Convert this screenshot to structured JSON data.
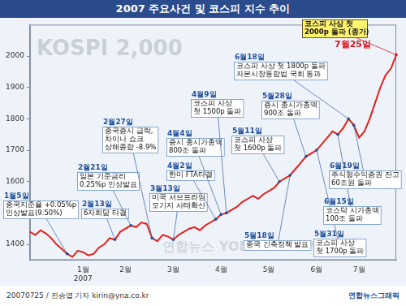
{
  "chart_data": {
    "type": "line",
    "title": "2007 주요사건 및 코스피 지수 추이",
    "subtitle": "KOSPI 2,000",
    "watermark": "연합뉴스 YONHAP NEWS",
    "footer": [
      "20070725 / 전승엽 기자 kirin@yna.co.kr",
      "연합뉴스그래픽"
    ],
    "categories": [
      null,
      null,
      null,
      null,
      null,
      null,
      null,
      null,
      null,
      null,
      "1월\n2007",
      null,
      null,
      null,
      null,
      null,
      null,
      null,
      "2월",
      null,
      null,
      null,
      null,
      null,
      null,
      null,
      null,
      "3월",
      null,
      null,
      null,
      null,
      null,
      null,
      null,
      null,
      "4월",
      null,
      null,
      null,
      null,
      null,
      null,
      null,
      null,
      "5월",
      null,
      null,
      null,
      null,
      null,
      null,
      null,
      null,
      "6월",
      null,
      null,
      null,
      null,
      null,
      null,
      null,
      "7월",
      null,
      null,
      null,
      null,
      null,
      null,
      null
    ],
    "values": [
      1440,
      1430,
      1445,
      1435,
      1420,
      1400,
      1385,
      1370,
      1360,
      1380,
      1375,
      1365,
      1370,
      1390,
      1400,
      1420,
      1415,
      1440,
      1450,
      1460,
      1455,
      1470,
      1465,
      1420,
      1410,
      1430,
      1425,
      1415,
      1430,
      1440,
      1450,
      1455,
      1445,
      1460,
      1470,
      1480,
      1495,
      1500,
      1510,
      1520,
      1535,
      1545,
      1555,
      1545,
      1560,
      1570,
      1580,
      1600,
      1610,
      1620,
      1640,
      1660,
      1680,
      1690,
      1700,
      1720,
      1740,
      1760,
      1750,
      1770,
      1800,
      1780,
      1740,
      1760,
      1800,
      1850,
      1900,
      1940,
      1960,
      2004
    ],
    "color": "#e3201b",
    "ylim": [
      1350,
      2100
    ],
    "yticks": [
      1400,
      1500,
      1600,
      1700,
      1800,
      1900,
      2000
    ],
    "grid": false,
    "annotations": [
      {
        "date": "1월5일",
        "text": [
          "중국지준율 +0.05%p",
          "인상발표(9.50%)"
        ]
      },
      {
        "date": "2월13일",
        "text": [
          "6자회담 타결"
        ]
      },
      {
        "date": "2월21일",
        "text": [
          "일본 기준금리",
          "0.25%p 인상발표"
        ]
      },
      {
        "date": "2월27일",
        "text": [
          "중국증시 급락,",
          "차이나 쇼크",
          "상해종합 -8.9%"
        ]
      },
      {
        "date": "3월13일",
        "text": [
          "미국 서브프라임",
          "모기지 사태확산"
        ]
      },
      {
        "date": "4월2일",
        "text": [
          "한미 FTA타결"
        ]
      },
      {
        "date": "4월4일",
        "text": [
          "증시 총시가총액",
          "800조 돌파"
        ]
      },
      {
        "date": "4월9일",
        "text": [
          "코스피 사상",
          "첫 1500p 돌파"
        ]
      },
      {
        "date": "5월11일",
        "text": [
          "코스피 사상",
          "첫 1600p 돌파"
        ]
      },
      {
        "date": "5월18일",
        "text": [
          "중국 긴축정책 발표"
        ]
      },
      {
        "date": "5월28일",
        "text": [
          "증시 총시가총액",
          "900조 돌파"
        ]
      },
      {
        "date": "5월31일",
        "text": [
          "코스피 사상",
          "첫 1700p 돌파"
        ]
      },
      {
        "date": "6월15일",
        "text": [
          "코스닥 시가총액",
          "100조 돌파"
        ]
      },
      {
        "date": "6월18일",
        "text": [
          "코스피 사상 첫 1800p 돌파",
          "자본시장통합법 국회 통과"
        ]
      },
      {
        "date": "6월19일",
        "text": [
          "주식형수익증권 잔고",
          "60조원 돌파"
        ]
      },
      {
        "date": "7월25일",
        "text": [
          "코스피 사상 첫",
          "2000p 돌파 (종가)"
        ]
      }
    ]
  }
}
